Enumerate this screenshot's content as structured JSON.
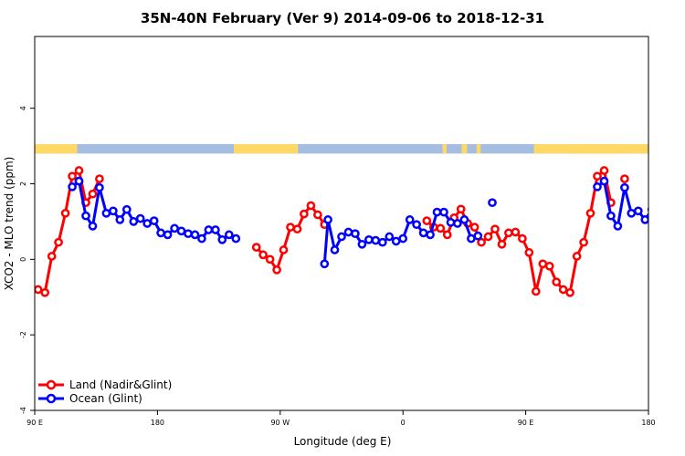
{
  "chart_data": {
    "type": "line",
    "title": "35N-40N February (Ver 9)   2014-09-06 to 2018-12-31",
    "xlabel": "Longitude (deg E)",
    "ylabel": "XCO2 - MLO trend (ppm)",
    "xlim": [
      90,
      540
    ],
    "ylim": [
      -4,
      5.9
    ],
    "x_ticks": [
      {
        "value": 90,
        "label": "90 E"
      },
      {
        "value": 180,
        "label": "180"
      },
      {
        "value": 270,
        "label": "90 W"
      },
      {
        "value": 360,
        "label": "0"
      },
      {
        "value": 450,
        "label": "90 E"
      },
      {
        "value": 540,
        "label": "180"
      }
    ],
    "y_ticks": [
      {
        "value": -4,
        "label": "-4"
      },
      {
        "value": -2,
        "label": "-2"
      },
      {
        "value": 0,
        "label": "0"
      },
      {
        "value": 2,
        "label": "2"
      },
      {
        "value": 4,
        "label": "4"
      }
    ],
    "colors": {
      "land": "#ff0000",
      "ocean": "#0000ff",
      "land_strip": "#ffd966",
      "ocean_strip": "#a5bde0"
    },
    "land_ocean_strip": {
      "y_range": [
        2.8,
        3.05
      ],
      "land_segments": [
        [
          90,
          121
        ],
        [
          109,
          121
        ],
        [
          236,
          283
        ],
        [
          389,
          392
        ],
        [
          403,
          407
        ],
        [
          414,
          417
        ],
        [
          456,
          550
        ],
        [
          485,
          503
        ],
        [
          504,
          519
        ]
      ]
    },
    "grid": false,
    "legend_position": "bottom-left",
    "series": [
      {
        "name": "Land (Nadir&Glint)",
        "key": "land",
        "segments": [
          [
            [
              92.5,
              -0.8
            ],
            [
              97.5,
              -0.88
            ],
            [
              102.5,
              0.08
            ],
            [
              107.5,
              0.45
            ],
            [
              112.5,
              1.22
            ],
            [
              117.5,
              2.2
            ],
            [
              122.5,
              2.35
            ],
            [
              127.5,
              1.5
            ],
            [
              132.5,
              1.73
            ],
            [
              137.5,
              2.13
            ]
          ],
          [
            [
              252.5,
              0.32
            ],
            [
              257.5,
              0.12
            ],
            [
              262.5,
              0.0
            ],
            [
              267.5,
              -0.28
            ],
            [
              272.5,
              0.25
            ],
            [
              277.5,
              0.85
            ],
            [
              282.5,
              0.8
            ],
            [
              287.5,
              1.2
            ],
            [
              292.5,
              1.42
            ],
            [
              297.5,
              1.18
            ],
            [
              302.5,
              0.92
            ]
          ],
          [
            [
              377.5,
              1.02
            ],
            [
              382.5,
              0.85
            ],
            [
              387.5,
              0.82
            ],
            [
              392.5,
              0.65
            ],
            [
              397.5,
              1.1
            ],
            [
              402.5,
              1.33
            ],
            [
              407.5,
              0.95
            ],
            [
              412.5,
              0.85
            ],
            [
              417.5,
              0.45
            ],
            [
              422.5,
              0.6
            ],
            [
              427.5,
              0.8
            ],
            [
              432.5,
              0.4
            ],
            [
              437.5,
              0.7
            ],
            [
              442.5,
              0.72
            ],
            [
              447.5,
              0.55
            ],
            [
              452.5,
              0.18
            ],
            [
              457.5,
              -0.85
            ],
            [
              462.5,
              -0.12
            ],
            [
              467.5,
              -0.18
            ],
            [
              472.5,
              -0.6
            ],
            [
              477.5,
              -0.8
            ],
            [
              482.5,
              -0.88
            ],
            [
              487.5,
              0.08
            ],
            [
              492.5,
              0.45
            ],
            [
              497.5,
              1.22
            ],
            [
              502.5,
              2.2
            ],
            [
              507.5,
              2.35
            ],
            [
              512.5,
              1.5
            ]
          ],
          [
            [
              522.5,
              2.13
            ]
          ]
        ]
      },
      {
        "name": "Ocean (Glint)",
        "key": "ocean",
        "segments": [
          [
            [
              122.5,
              2.07
            ],
            [
              117.5,
              1.92
            ]
          ],
          [
            [
              122.5,
              2.07
            ],
            [
              127.5,
              1.15
            ],
            [
              132.5,
              0.88
            ],
            [
              137.5,
              1.9
            ],
            [
              142.5,
              1.22
            ],
            [
              147.5,
              1.28
            ],
            [
              152.5,
              1.05
            ],
            [
              157.5,
              1.32
            ],
            [
              162.5,
              1.0
            ],
            [
              167.5,
              1.08
            ],
            [
              172.5,
              0.95
            ],
            [
              177.5,
              1.02
            ],
            [
              182.5,
              0.7
            ],
            [
              187.5,
              0.65
            ],
            [
              192.5,
              0.82
            ],
            [
              197.5,
              0.75
            ],
            [
              202.5,
              0.68
            ],
            [
              207.5,
              0.65
            ],
            [
              212.5,
              0.55
            ],
            [
              217.5,
              0.78
            ],
            [
              222.5,
              0.78
            ],
            [
              227.5,
              0.52
            ],
            [
              232.5,
              0.65
            ],
            [
              237.5,
              0.55
            ]
          ],
          [
            [
              302.5,
              -0.12
            ],
            [
              305,
              1.05
            ],
            [
              310,
              0.25
            ],
            [
              315,
              0.6
            ],
            [
              320,
              0.72
            ],
            [
              325,
              0.68
            ],
            [
              330,
              0.4
            ],
            [
              335,
              0.52
            ],
            [
              340,
              0.5
            ],
            [
              345,
              0.45
            ],
            [
              350,
              0.6
            ],
            [
              355,
              0.48
            ],
            [
              360,
              0.55
            ],
            [
              365,
              1.05
            ],
            [
              370,
              0.92
            ],
            [
              375,
              0.7
            ],
            [
              380,
              0.65
            ],
            [
              385,
              1.25
            ],
            [
              390,
              1.25
            ],
            [
              395,
              0.98
            ],
            [
              400,
              0.95
            ],
            [
              405,
              1.05
            ],
            [
              410,
              0.55
            ],
            [
              415,
              0.62
            ]
          ],
          [
            [
              425.5,
              1.5
            ]
          ],
          [
            [
              502.5,
              1.92
            ],
            [
              507.5,
              2.07
            ],
            [
              512.5,
              1.15
            ],
            [
              517.5,
              0.88
            ],
            [
              522.5,
              1.9
            ],
            [
              527.5,
              1.22
            ],
            [
              532.5,
              1.28
            ],
            [
              537.5,
              1.05
            ],
            [
              542.5,
              1.32
            ],
            [
              547.5,
              1.0
            ],
            [
              552.5,
              1.08
            ],
            [
              557.5,
              0.95
            ],
            [
              562.5,
              1.02
            ]
          ]
        ]
      }
    ]
  }
}
